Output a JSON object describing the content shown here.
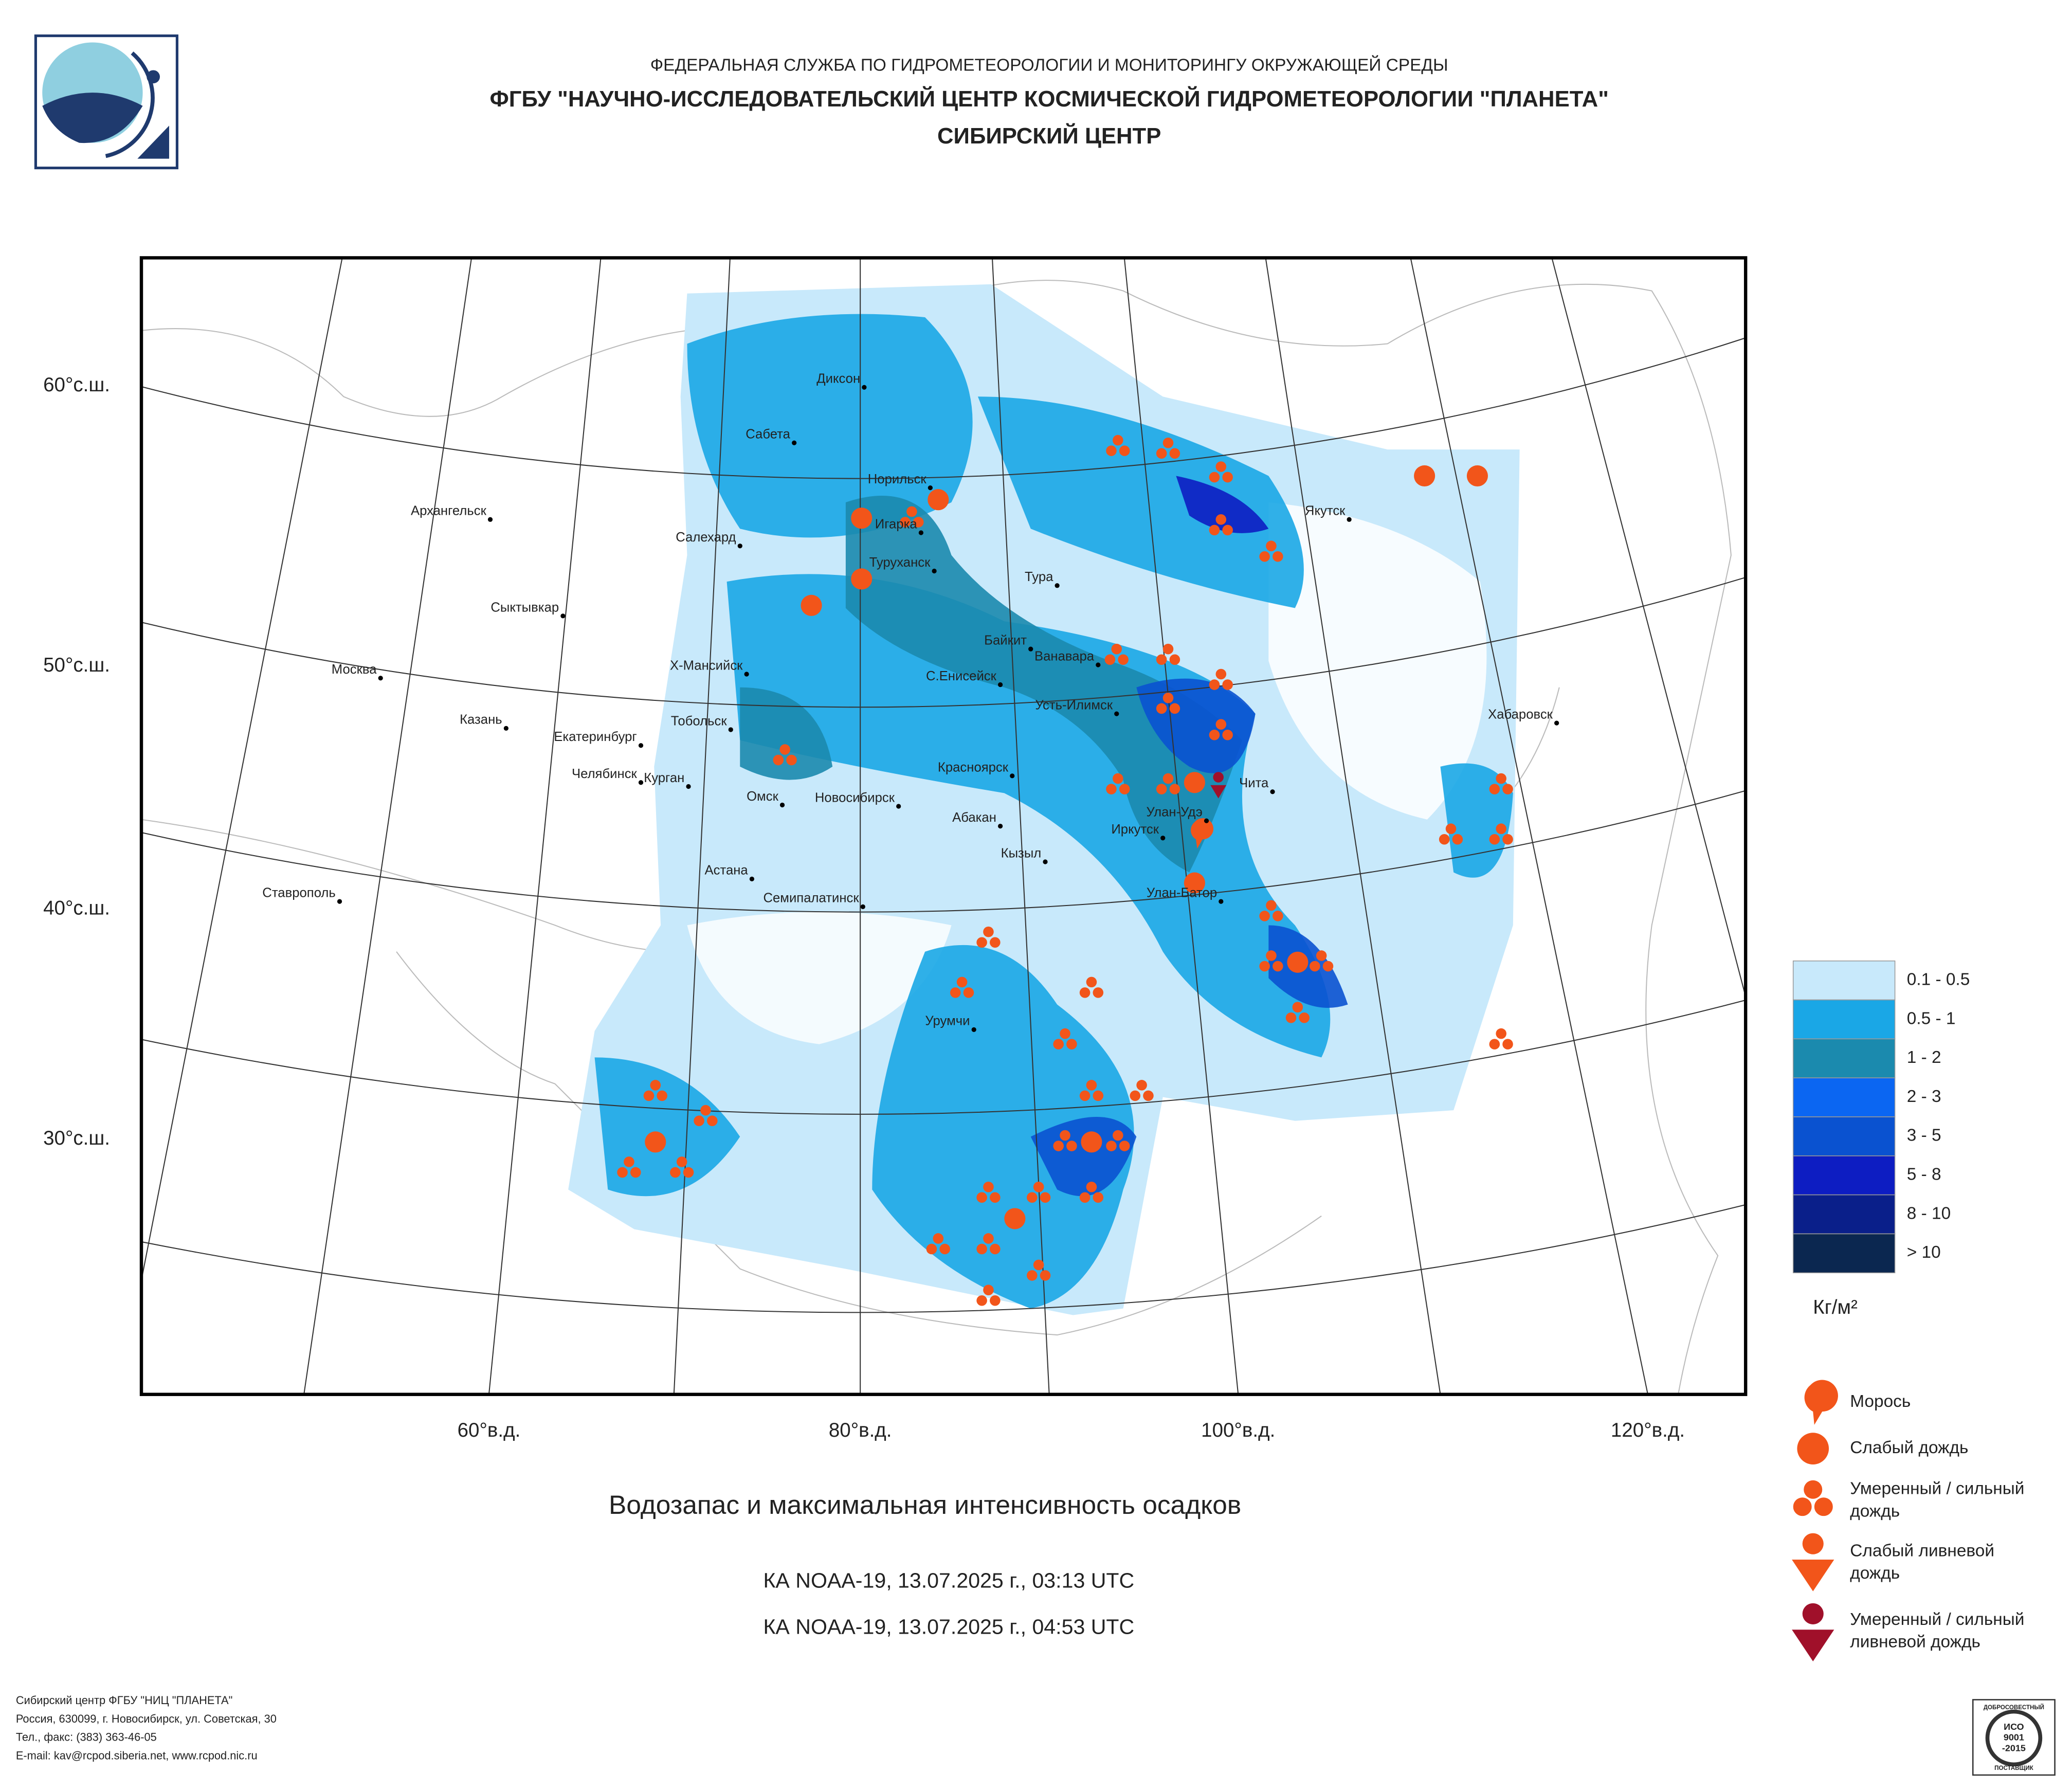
{
  "header": {
    "lines": [
      "ФЕДЕРАЛЬНАЯ СЛУЖБА ПО ГИДРОМЕТЕОРОЛОГИИ И МОНИТОРИНГУ ОКРУЖАЮЩЕЙ СРЕДЫ",
      "ФГБУ \"НАУЧНО-ИССЛЕДОВАТЕЛЬСКИЙ ЦЕНТР КОСМИЧЕСКОЙ ГИДРОМЕТЕОРОЛОГИИ \"ПЛАНЕТА\"",
      "СИБИРСКИЙ ЦЕНТР"
    ]
  },
  "map": {
    "lat_labels": [
      "60°с.ш.",
      "50°с.ш.",
      "40°с.ш.",
      "30°с.ш."
    ],
    "lon_labels": [
      "60°в.д.",
      "80°в.д.",
      "100°в.д.",
      "120°в.д."
    ],
    "cities": [
      "Диксон",
      "Сабета",
      "Норильск",
      "Игарка",
      "Архангельск",
      "Салехард",
      "Туруханск",
      "Тура",
      "Сыктывкар",
      "Якутск",
      "Байкит",
      "Ванавара",
      "Х-Мансийск",
      "С.Енисейск",
      "Москва",
      "Усть-Илимск",
      "Хабаровск",
      "Казань",
      "Тобольск",
      "Екатеринбург",
      "Челябинск",
      "Курган",
      "Красноярск",
      "Чита",
      "Омск",
      "Новосибирск",
      "Улан-Удэ",
      "Абакан",
      "Иркутск",
      "Кызыл",
      "Астана",
      "Ставрополь",
      "Семипалатинск",
      "Улан-Батор",
      "Урумчи"
    ]
  },
  "legend": {
    "water": [
      {
        "label": "0.1 - 0.5",
        "color": "#c8e9fb"
      },
      {
        "label": "0.5 - 1",
        "color": "#1aa7e6"
      },
      {
        "label": "1 - 2",
        "color": "#1b8aae"
      },
      {
        "label": "2 - 3",
        "color": "#0b66f2"
      },
      {
        "label": "3 - 5",
        "color": "#0a52d0"
      },
      {
        "label": "5 - 8",
        "color": "#0d1dc2"
      },
      {
        "label": "8 - 10",
        "color": "#0a1f8a"
      },
      {
        "label": "> 10",
        "color": "#0b2750"
      }
    ],
    "unit": "Кг/м²",
    "precip": [
      {
        "lines": [
          "Морось"
        ]
      },
      {
        "lines": [
          "Слабый дождь"
        ]
      },
      {
        "lines": [
          "Умеренный / сильный",
          "дождь"
        ]
      },
      {
        "lines": [
          "Слабый ливневой",
          "дождь"
        ]
      },
      {
        "lines": [
          "Умеренный / сильный",
          "ливневой дождь"
        ]
      }
    ]
  },
  "caption": {
    "title": "Водозапас и максимальная интенсивность осадков",
    "passes": [
      "КА NOAA-19, 13.07.2025 г., 03:13 UTC",
      "КА NOAA-19, 13.07.2025 г., 04:53 UTC"
    ]
  },
  "footer": {
    "lines": [
      "Сибирский центр ФГБУ \"НИЦ \"ПЛАНЕТА\"",
      "Россия, 630099, г. Новосибирск, ул. Советская, 30",
      "Тел., факс: (383) 363-46-05",
      "E-mail: kav@rcpod.siberia.net, www.rcpod.nic.ru"
    ]
  },
  "iso": {
    "top": "ДОБРОСОВЕСТНЫЙ",
    "lines": [
      "ИСО",
      "9001",
      "-2015"
    ],
    "bottom": "ПОСТАВЩИК"
  }
}
